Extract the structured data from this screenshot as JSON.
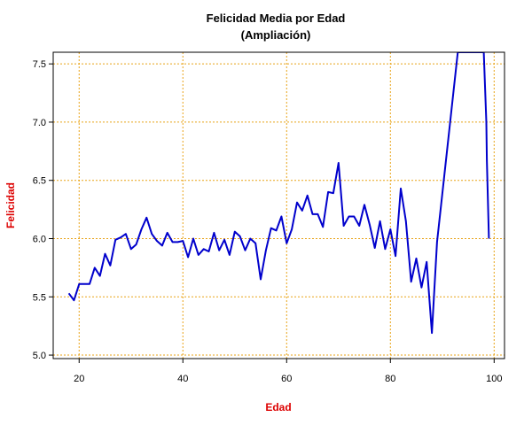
{
  "colors": {
    "series": "#0000cc",
    "grid": "#e8a317",
    "axis_label": "#dd0000",
    "frame": "#000000"
  },
  "chart_data": {
    "type": "line",
    "title": "Felicidad Media por Edad",
    "subtitle": "(Ampliación)",
    "xlabel": "Edad",
    "ylabel": "Felicidad",
    "xlim": [
      15,
      102
    ],
    "ylim": [
      4.97,
      7.6
    ],
    "grid": true,
    "x_ticks": [
      20,
      40,
      60,
      80,
      100
    ],
    "y_ticks": [
      5.0,
      5.5,
      6.0,
      6.5,
      7.0,
      7.5
    ],
    "x_tick_labels": [
      "20",
      "40",
      "60",
      "80",
      "100"
    ],
    "y_tick_labels": [
      "5.0",
      "5.5",
      "6.0",
      "6.5",
      "7.0",
      "7.5"
    ],
    "series": [
      {
        "x": [
          18,
          19,
          20,
          21,
          22,
          23,
          24,
          25,
          26,
          27,
          28,
          29,
          30,
          31,
          32,
          33,
          34,
          35,
          36,
          37,
          38,
          39,
          40,
          41,
          42,
          43,
          44,
          45,
          46,
          47,
          48,
          49,
          50,
          51,
          52,
          53,
          54,
          55,
          56,
          57,
          58,
          59,
          60,
          61,
          62,
          63,
          64,
          65,
          66,
          67,
          68,
          69,
          70,
          71,
          72,
          73,
          74,
          75,
          76,
          77,
          78,
          79,
          80,
          81,
          82,
          83,
          84,
          85,
          86,
          87,
          88,
          89,
          93,
          98,
          98.5,
          98.6,
          99
        ],
        "y": [
          5.53,
          5.47,
          5.61,
          5.61,
          5.61,
          5.75,
          5.68,
          5.87,
          5.77,
          5.99,
          6.01,
          6.04,
          5.91,
          5.95,
          6.08,
          6.18,
          6.04,
          5.98,
          5.94,
          6.05,
          5.97,
          5.97,
          5.98,
          5.84,
          6.0,
          5.86,
          5.91,
          5.89,
          6.05,
          5.9,
          5.99,
          5.86,
          6.06,
          6.02,
          5.9,
          6.0,
          5.96,
          5.65,
          5.9,
          6.09,
          6.07,
          6.19,
          5.96,
          6.08,
          6.31,
          6.24,
          6.37,
          6.21,
          6.21,
          6.1,
          6.4,
          6.39,
          6.65,
          6.11,
          6.19,
          6.19,
          6.11,
          6.29,
          6.12,
          5.92,
          6.15,
          5.91,
          6.08,
          5.85,
          6.43,
          6.15,
          5.63,
          5.83,
          5.58,
          5.8,
          5.19,
          5.97,
          7.6,
          7.6,
          7.0,
          6.67,
          6.0
        ]
      }
    ]
  }
}
